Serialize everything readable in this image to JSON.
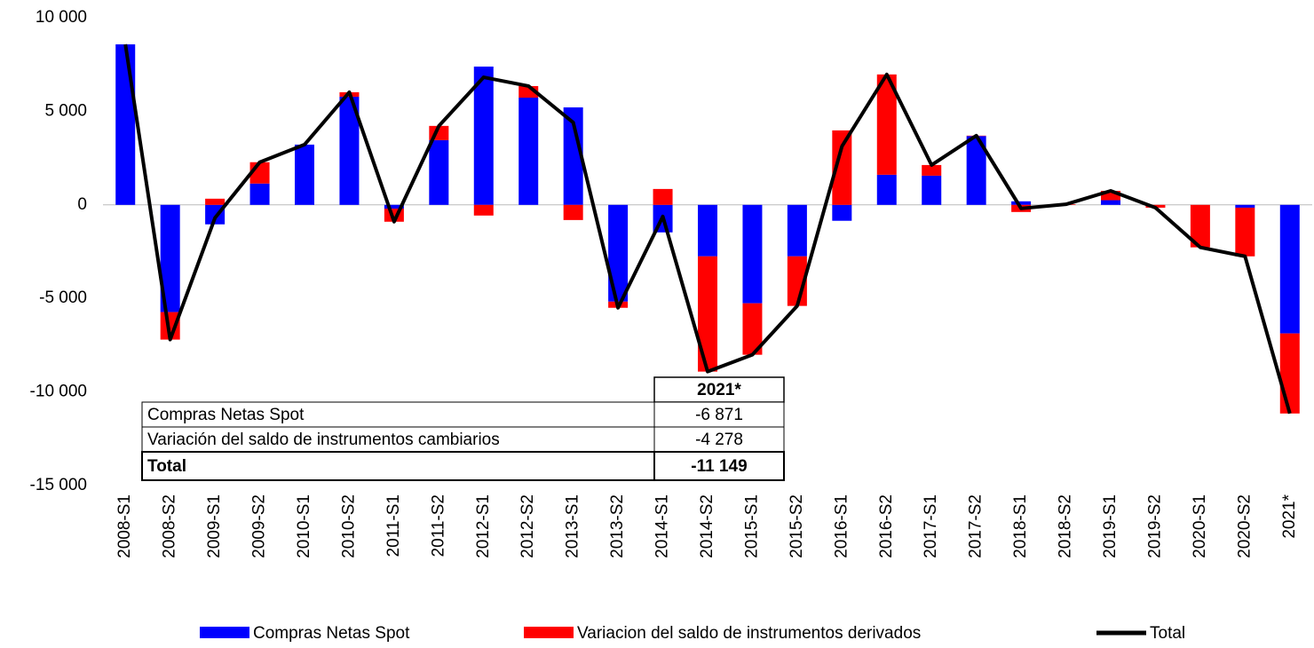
{
  "chart_data": {
    "type": "bar_line",
    "categories": [
      "2008-S1",
      "2008-S2",
      "2009-S1",
      "2009-S2",
      "2010-S1",
      "2010-S2",
      "2011-S1",
      "2011-S2",
      "2012-S1",
      "2012-S2",
      "2013-S1",
      "2013-S2",
      "2014-S1",
      "2014-S2",
      "2015-S1",
      "2015-S2",
      "2016-S1",
      "2016-S2",
      "2017-S1",
      "2017-S2",
      "2018-S1",
      "2018-S2",
      "2019-S1",
      "2019-S2",
      "2020-S1",
      "2020-S2",
      "2021*"
    ],
    "series": [
      {
        "name": "Compras Netas Spot",
        "color": "#0000ff",
        "kind": "bar",
        "values": [
          8580,
          -5730,
          -1040,
          1140,
          3220,
          5780,
          -200,
          3460,
          7390,
          5730,
          5210,
          -5170,
          -1470,
          -2750,
          -5260,
          -2750,
          -850,
          1610,
          1560,
          3680,
          190,
          0,
          250,
          0,
          0,
          -150,
          -6871
        ]
      },
      {
        "name": "Variacion del saldo de instrumentos derivados",
        "color": "#ff0000",
        "kind": "bar",
        "values": [
          0,
          -1470,
          330,
          1140,
          0,
          240,
          -700,
          760,
          -570,
          620,
          -810,
          -330,
          850,
          -6160,
          -2750,
          -2650,
          3980,
          5360,
          570,
          20,
          -380,
          30,
          500,
          -150,
          -2270,
          -2600,
          -4278
        ]
      },
      {
        "name": "Total",
        "color": "#000000",
        "kind": "line",
        "values": [
          8580,
          -7200,
          -700,
          2280,
          3220,
          6020,
          -900,
          4220,
          6820,
          6350,
          4400,
          -5500,
          -620,
          -8910,
          -8010,
          -5400,
          3130,
          6970,
          2130,
          3700,
          -190,
          30,
          750,
          -150,
          -2270,
          -2750,
          -11149
        ]
      }
    ],
    "ylim": [
      -15000,
      10000
    ],
    "yticks": [
      {
        "value": -15000,
        "label": "-15 000"
      },
      {
        "value": -10000,
        "label": "-10 000"
      },
      {
        "value": -5000,
        "label": "-5 000"
      },
      {
        "value": 0,
        "label": "0"
      },
      {
        "value": 5000,
        "label": "5 000"
      },
      {
        "value": 10000,
        "label": "10 000"
      }
    ],
    "grid": false,
    "legend": "bottom",
    "table": {
      "header": "2021*",
      "rows": [
        [
          "Compras Netas Spot",
          "-6 871"
        ],
        [
          "Variación del saldo de instrumentos cambiarios",
          "-4 278"
        ],
        [
          "Total",
          "-11 149"
        ]
      ]
    }
  }
}
